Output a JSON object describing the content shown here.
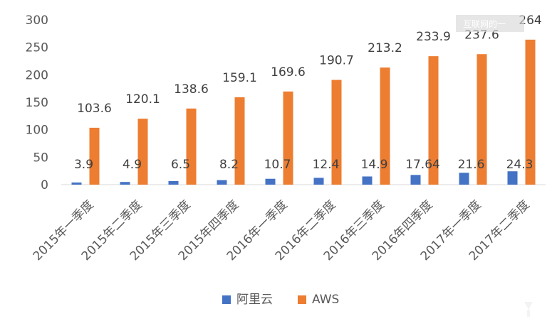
{
  "colors": {
    "series_1": "#4472C4",
    "series_2": "#ED7D31",
    "axis": "#D9D9D9",
    "grid": "#F2F2F2",
    "text": "#595959",
    "data_label": "#404040",
    "watermark_fill": "#D9D9D9"
  },
  "watermark": {
    "text": "互联网的一"
  },
  "chart_data": {
    "type": "bar",
    "categories": [
      "2015年一季度",
      "2015年二季度",
      "2015年三季度",
      "2015年四季度",
      "2016年一季度",
      "2016年二季度",
      "2016年三季度",
      "2016年四季度",
      "2017年一季度",
      "2017年二季度"
    ],
    "series": [
      {
        "name": "阿里云",
        "values": [
          3.9,
          4.9,
          6.5,
          8.2,
          10.7,
          12.4,
          14.9,
          17.64,
          21.6,
          24.3
        ],
        "labels": [
          "3.9",
          "4.9",
          "6.5",
          "8.2",
          "10.7",
          "12.4",
          "14.9",
          "17.64",
          "21.6",
          "24.3"
        ],
        "color": "#4472C4"
      },
      {
        "name": "AWS",
        "values": [
          103.6,
          120.1,
          138.6,
          159.1,
          169.6,
          190.7,
          213.2,
          233.9,
          237.6,
          264
        ],
        "labels": [
          "103.6",
          "120.1",
          "138.6",
          "159.1",
          "169.6",
          "190.7",
          "213.2",
          "233.9",
          "237.6",
          "264"
        ],
        "color": "#ED7D31"
      }
    ],
    "yticks": [
      "0",
      "50",
      "100",
      "150",
      "200",
      "250",
      "300"
    ],
    "ylim": [
      0,
      300
    ],
    "legend_placement": "bottom",
    "grid": false,
    "title": "",
    "xlabel": "",
    "ylabel": ""
  }
}
